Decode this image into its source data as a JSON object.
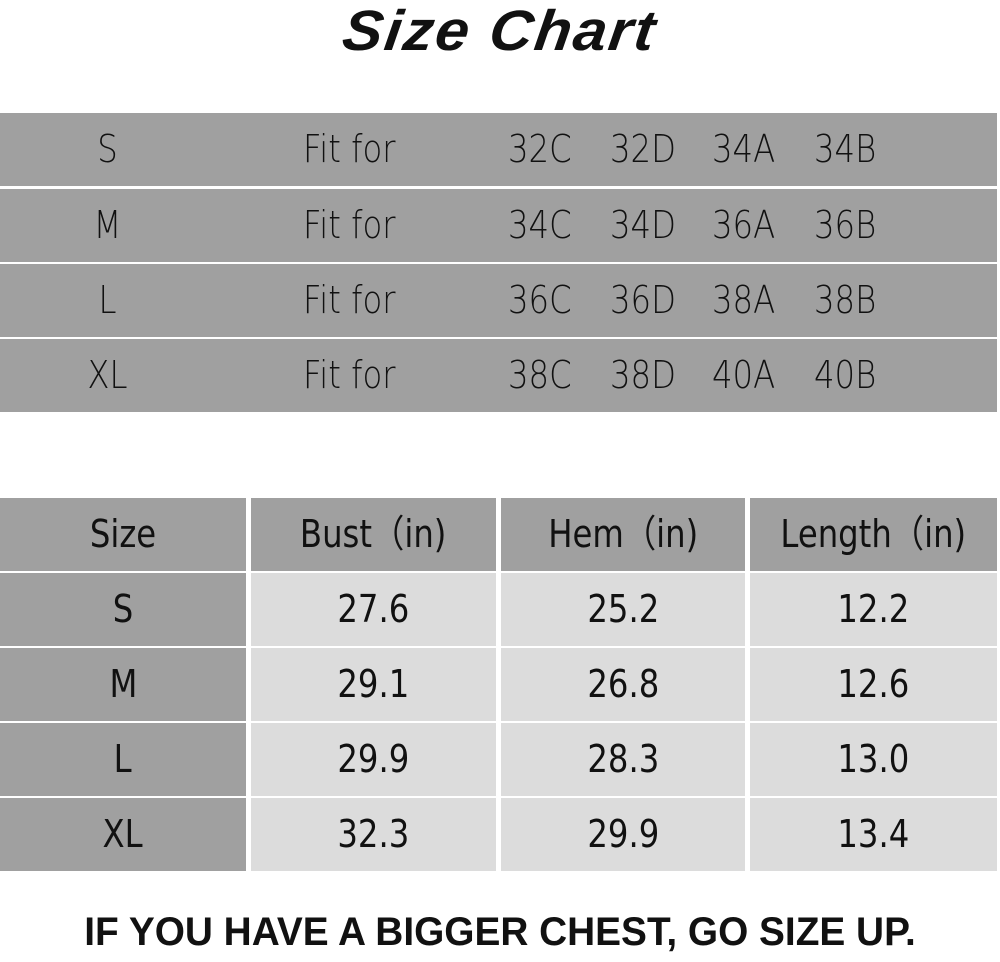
{
  "title": "Size Chart",
  "fit_table": {
    "rows": [
      {
        "size": "S",
        "label": "Fit for",
        "fits": [
          "32C",
          "32D",
          "34A",
          "34B"
        ]
      },
      {
        "size": "M",
        "label": "Fit for",
        "fits": [
          "34C",
          "34D",
          "36A",
          "36B"
        ]
      },
      {
        "size": "L",
        "label": "Fit for",
        "fits": [
          "36C",
          "36D",
          "38A",
          "38B"
        ]
      },
      {
        "size": "XL",
        "label": "Fit for",
        "fits": [
          "38C",
          "38D",
          "40A",
          "40B"
        ]
      }
    ]
  },
  "measure_table": {
    "headers": [
      "Size",
      "Bust（in)",
      "Hem（in)",
      "Length（in)"
    ],
    "rows": [
      [
        "S",
        "27.6",
        "25.2",
        "12.2"
      ],
      [
        "M",
        "29.1",
        "26.8",
        "12.6"
      ],
      [
        "L",
        "29.9",
        "28.3",
        "13.0"
      ],
      [
        "XL",
        "32.3",
        "29.9",
        "13.4"
      ]
    ]
  },
  "footer": "IF YOU HAVE A BIGGER CHEST, GO SIZE UP.",
  "colors": {
    "dark_cell": "#a0a0a0",
    "light_cell": "#dcdcdc"
  }
}
